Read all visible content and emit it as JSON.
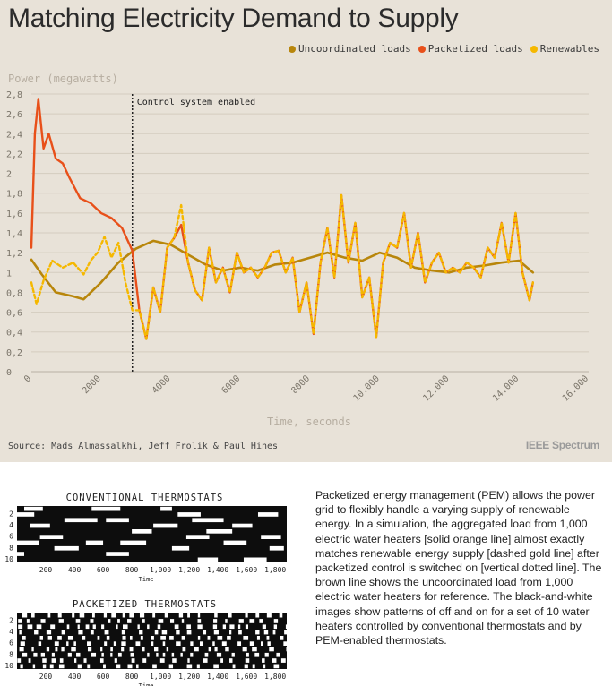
{
  "chart_title": "Matching Electricity Demand to Supply",
  "legend": [
    {
      "label": "Uncoordinated loads",
      "color": "#b8860b"
    },
    {
      "label": "Packetized loads",
      "color": "#e8501a"
    },
    {
      "label": "Renewables",
      "color": "#f5b800"
    }
  ],
  "source": "Source: Mads Almassalkhi, Jeff Frolik & Paul Hines",
  "brand": "IEEE Spectrum",
  "caption": "Packetized energy management (PEM) allows the power grid to flexibly handle a varying supply of renewable energy. In a simulation, the aggregated load from 1,000 electric water heaters [solid orange line] almost exactly matches renewable energy supply [dashed gold line] after packetized control is switched on [vertical dotted line]. The brown line shows the uncoordinated load from 1,000 electric water heaters for reference. The black-and-white images show patterns of off and on for a set of 10 water heaters controlled by conventional thermostats and by PEM-enabled thermostats.",
  "chart_data": {
    "type": "line",
    "title": "Matching Electricity Demand to Supply",
    "xlabel": "Time, seconds",
    "ylabel": "Power (megawatts)",
    "xlim": [
      0,
      16000
    ],
    "ylim": [
      0,
      2.8
    ],
    "x_ticks": [
      0,
      2000,
      4000,
      6000,
      8000,
      10000,
      12000,
      14000,
      16000
    ],
    "x_tick_labels": [
      "0",
      "2000",
      "4000",
      "6000",
      "8000",
      "10.000",
      "12.000",
      "14.000",
      "16.000"
    ],
    "y_ticks": [
      0,
      0.2,
      0.4,
      0.6,
      0.8,
      1,
      1.2,
      1.4,
      1.6,
      1.8,
      2,
      2.2,
      2.4,
      2.6,
      2.8
    ],
    "y_tick_labels": [
      "0",
      "0,2",
      "0,4",
      "0,6",
      "0,8",
      "1",
      "1,2",
      "1,4",
      "1,6",
      "1,8",
      "2",
      "2,2",
      "2,4",
      "2,6",
      "2,8"
    ],
    "annotation": {
      "label": "Control system enabled",
      "x": 2900
    },
    "series": [
      {
        "name": "Uncoordinated loads",
        "color": "#b8860b",
        "style": "solid",
        "x": [
          0,
          300,
          700,
          1200,
          1500,
          2000,
          2500,
          3000,
          3500,
          4000,
          4500,
          5000,
          5500,
          6000,
          6500,
          7000,
          7500,
          8000,
          8500,
          9000,
          9500,
          10000,
          10500,
          11000,
          11500,
          12000,
          12500,
          13000,
          13500,
          14000,
          14400
        ],
        "y": [
          1.13,
          0.98,
          0.8,
          0.76,
          0.73,
          0.9,
          1.1,
          1.24,
          1.32,
          1.28,
          1.18,
          1.08,
          1.02,
          1.05,
          1.02,
          1.08,
          1.1,
          1.15,
          1.2,
          1.15,
          1.12,
          1.2,
          1.15,
          1.05,
          1.02,
          1.0,
          1.05,
          1.07,
          1.1,
          1.12,
          1.0
        ]
      },
      {
        "name": "Packetized loads",
        "color": "#e8501a",
        "style": "solid",
        "x": [
          0,
          100,
          200,
          350,
          500,
          700,
          900,
          1100,
          1400,
          1700,
          2000,
          2300,
          2600,
          2900,
          3100,
          3300,
          3500,
          3700,
          3900,
          4100,
          4300,
          4500,
          4700,
          4900,
          5100,
          5300,
          5500,
          5700,
          5900,
          6100,
          6300,
          6500,
          6700,
          6900,
          7100,
          7300,
          7500,
          7700,
          7900,
          8100,
          8300,
          8500,
          8700,
          8900,
          9100,
          9300,
          9500,
          9700,
          9900,
          10100,
          10300,
          10500,
          10700,
          10900,
          11100,
          11300,
          11500,
          11700,
          11900,
          12100,
          12300,
          12500,
          12700,
          12900,
          13100,
          13300,
          13500,
          13700,
          13900,
          14100,
          14300,
          14400
        ],
        "y": [
          1.25,
          2.4,
          2.75,
          2.25,
          2.4,
          2.15,
          2.1,
          1.95,
          1.75,
          1.7,
          1.6,
          1.55,
          1.45,
          1.22,
          0.62,
          0.33,
          0.85,
          0.6,
          1.25,
          1.35,
          1.48,
          1.1,
          0.82,
          0.72,
          1.25,
          0.9,
          1.05,
          0.8,
          1.2,
          1.0,
          1.05,
          0.95,
          1.05,
          1.2,
          1.22,
          1.0,
          1.15,
          0.6,
          0.9,
          0.38,
          1.1,
          1.45,
          0.95,
          1.78,
          1.1,
          1.5,
          0.75,
          0.95,
          0.35,
          1.1,
          1.3,
          1.25,
          1.6,
          1.05,
          1.4,
          0.9,
          1.1,
          1.2,
          1.0,
          1.05,
          1.0,
          1.1,
          1.05,
          0.95,
          1.25,
          1.15,
          1.5,
          1.1,
          1.6,
          1.0,
          0.72,
          0.9
        ]
      },
      {
        "name": "Renewables",
        "color": "#f5b800",
        "style": "dashed",
        "x": [
          0,
          150,
          350,
          600,
          900,
          1200,
          1500,
          1700,
          1900,
          2100,
          2300,
          2500,
          2700,
          2900,
          3100,
          3300,
          3500,
          3700,
          3900,
          4100,
          4300,
          4500,
          4700,
          4900,
          5100,
          5300,
          5500,
          5700,
          5900,
          6100,
          6300,
          6500,
          6700,
          6900,
          7100,
          7300,
          7500,
          7700,
          7900,
          8100,
          8300,
          8500,
          8700,
          8900,
          9100,
          9300,
          9500,
          9700,
          9900,
          10100,
          10300,
          10500,
          10700,
          10900,
          11100,
          11300,
          11500,
          11700,
          11900,
          12100,
          12300,
          12500,
          12700,
          12900,
          13100,
          13300,
          13500,
          13700,
          13900,
          14100,
          14300,
          14400
        ],
        "y": [
          0.9,
          0.68,
          0.92,
          1.12,
          1.05,
          1.1,
          0.98,
          1.12,
          1.2,
          1.36,
          1.15,
          1.3,
          0.9,
          0.62,
          0.62,
          0.33,
          0.85,
          0.6,
          1.25,
          1.35,
          1.68,
          1.1,
          0.82,
          0.72,
          1.25,
          0.9,
          1.05,
          0.8,
          1.2,
          1.0,
          1.05,
          0.95,
          1.05,
          1.2,
          1.22,
          1.0,
          1.15,
          0.6,
          0.9,
          0.38,
          1.1,
          1.45,
          0.95,
          1.78,
          1.1,
          1.5,
          0.75,
          0.95,
          0.35,
          1.1,
          1.3,
          1.25,
          1.6,
          1.05,
          1.4,
          0.9,
          1.1,
          1.2,
          1.0,
          1.05,
          1.0,
          1.1,
          1.05,
          0.95,
          1.25,
          1.15,
          1.5,
          1.1,
          1.6,
          1.0,
          0.72,
          0.9
        ]
      }
    ]
  },
  "thermostat_panels": [
    {
      "title": "CONVENTIONAL THERMOSTATS",
      "y_tick_labels": [
        "2",
        "4",
        "6",
        "8",
        "10"
      ],
      "x_tick_labels": [
        "200",
        "400",
        "600",
        "800",
        "1,000",
        "1,200",
        "1,400",
        "1,600",
        "1,800"
      ],
      "x_axis_label": "Time",
      "on_segments_by_row": [
        [
          [
            50,
            180
          ],
          [
            520,
            720
          ],
          [
            1000,
            1080
          ]
        ],
        [
          [
            0,
            120
          ],
          [
            1120,
            1280
          ],
          [
            1680,
            1820
          ]
        ],
        [
          [
            330,
            560
          ],
          [
            620,
            780
          ],
          [
            1220,
            1440
          ]
        ],
        [
          [
            90,
            230
          ],
          [
            950,
            1120
          ],
          [
            1500,
            1640
          ]
        ],
        [
          [
            800,
            940
          ],
          [
            1320,
            1500
          ]
        ],
        [
          [
            160,
            320
          ],
          [
            1180,
            1340
          ],
          [
            1700,
            1840
          ]
        ],
        [
          [
            0,
            150
          ],
          [
            480,
            600
          ],
          [
            720,
            900
          ],
          [
            1440,
            1600
          ]
        ],
        [
          [
            260,
            430
          ],
          [
            1080,
            1200
          ],
          [
            1760,
            1860
          ]
        ],
        [
          [
            0,
            50
          ],
          [
            620,
            780
          ]
        ],
        [
          [
            1260,
            1400
          ],
          [
            1580,
            1740
          ]
        ]
      ]
    },
    {
      "title": "PACKETIZED THERMOSTATS",
      "y_tick_labels": [
        "2",
        "4",
        "6",
        "8",
        "10"
      ],
      "x_tick_labels": [
        "200",
        "400",
        "600",
        "800",
        "1,000",
        "1,200",
        "1,400",
        "1,600",
        "1,800"
      ],
      "x_axis_label": "Time"
    }
  ]
}
